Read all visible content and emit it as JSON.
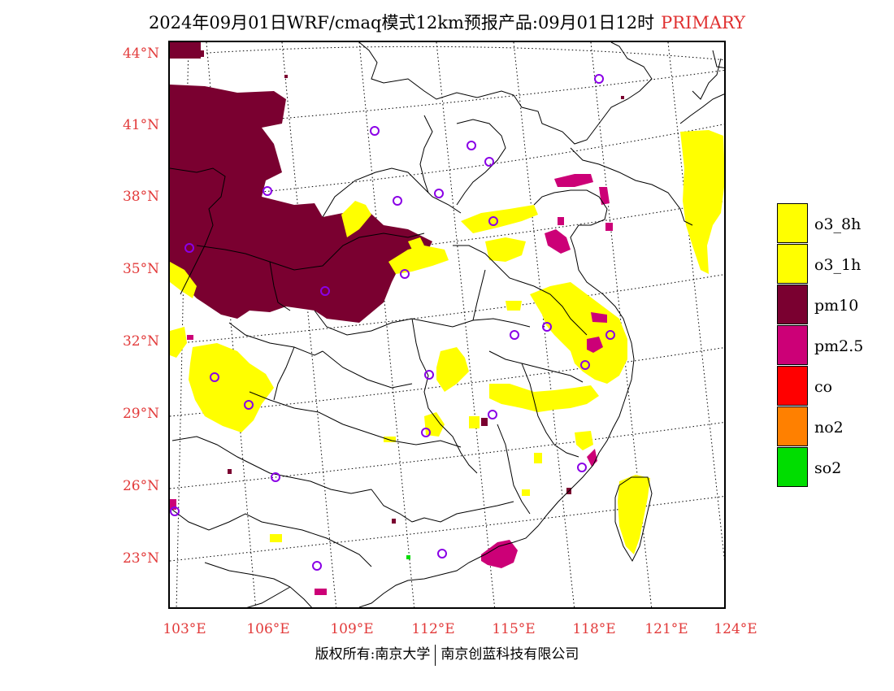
{
  "title": {
    "main": "2024年09月01日WRF/cmaq模式12km预报产品:09月01日12时",
    "tag": "PRIMARY"
  },
  "lat_labels": [
    "44°N",
    "41°N",
    "38°N",
    "35°N",
    "32°N",
    "29°N",
    "26°N",
    "23°N"
  ],
  "lon_labels": [
    "103°E",
    "106°E",
    "109°E",
    "112°E",
    "115°E",
    "118°E",
    "121°E",
    "124°E"
  ],
  "legend": [
    {
      "label": "o3_8h",
      "color": "#ffff00"
    },
    {
      "label": "o3_1h",
      "color": "#ffff00"
    },
    {
      "label": "pm10",
      "color": "#7a0030"
    },
    {
      "label": "pm2.5",
      "color": "#cc0077"
    },
    {
      "label": "co",
      "color": "#ff0000"
    },
    {
      "label": "no2",
      "color": "#ff8000"
    },
    {
      "label": "so2",
      "color": "#00dd00"
    }
  ],
  "footer": {
    "left": "版权所有:南京大学",
    "right": "南京创蓝科技有限公司"
  }
}
